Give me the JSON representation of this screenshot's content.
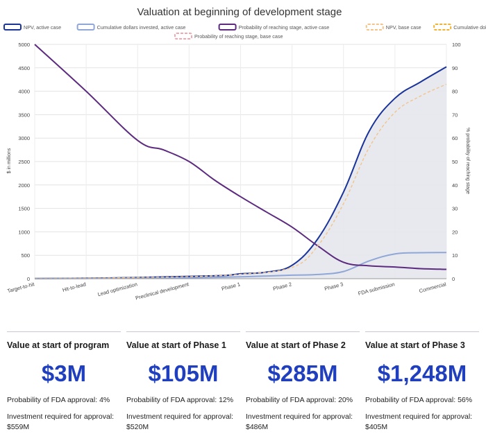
{
  "chart_data": {
    "type": "line",
    "title": "Valuation at beginning of development stage",
    "ylabel": "$ in millions",
    "y2label": "% probability of reaching stage",
    "categories": [
      "Target-to-hit",
      "Hit-to-lead",
      "Lead optimization",
      "Preclinical development",
      "Phase 1",
      "Phase 2",
      "Phase 3",
      "FDA submission",
      "Commercial"
    ],
    "ylim": [
      0,
      5000
    ],
    "y2lim": [
      0,
      100
    ],
    "yticks": [
      0,
      500,
      1000,
      1500,
      2000,
      2500,
      3000,
      3500,
      4000,
      4500,
      5000
    ],
    "y2ticks": [
      0,
      10,
      20,
      30,
      40,
      50,
      60,
      70,
      80,
      90,
      100
    ],
    "grid": true,
    "legend_position": "top",
    "series": [
      {
        "name": "NPV, active case",
        "axis": "left",
        "style": "solid",
        "color": "#1a3399",
        "fill": "#e4e7ec",
        "x": [
          0,
          1,
          2,
          3,
          3.7,
          4,
          4.5,
          5,
          5.5,
          6,
          6.5,
          7,
          7.5,
          8
        ],
        "values": [
          3,
          10,
          25,
          50,
          70,
          105,
          140,
          285,
          850,
          1850,
          3150,
          3850,
          4200,
          4520
        ]
      },
      {
        "name": "Cumulative dollars invested, active case",
        "axis": "left",
        "style": "solid",
        "color": "#8fa6d6",
        "x": [
          0,
          1,
          2,
          3,
          4,
          5,
          5.5,
          6,
          6.5,
          7,
          7.5,
          8
        ],
        "values": [
          2,
          5,
          10,
          20,
          40,
          75,
          90,
          154,
          380,
          530,
          555,
          559
        ]
      },
      {
        "name": "Probability of reaching stage, active case",
        "axis": "right",
        "style": "solid",
        "color": "#5c2a7e",
        "x": [
          0,
          1,
          2,
          2.5,
          3,
          3.5,
          4,
          4.5,
          5,
          5.5,
          6,
          6.5,
          7,
          7.5,
          8
        ],
        "values": [
          100,
          80,
          59,
          55,
          50,
          42,
          35,
          28.5,
          22,
          14,
          7,
          5.5,
          5,
          4.3,
          4
        ]
      },
      {
        "name": "NPV, base case",
        "axis": "left",
        "style": "dashed",
        "color": "#f2c48c",
        "x": [
          0,
          1,
          2,
          3,
          4,
          5,
          5.5,
          6,
          6.5,
          7,
          7.5,
          8
        ],
        "values": [
          3,
          10,
          25,
          45,
          95,
          240,
          700,
          1600,
          2800,
          3550,
          3900,
          4150
        ]
      },
      {
        "name": "Cumulative dollars invested, base case",
        "axis": "left",
        "style": "dashed",
        "color": "#f0b230",
        "x": [
          0,
          8
        ],
        "values": [
          null,
          null
        ]
      },
      {
        "name": "Probability of reaching stage, base case",
        "axis": "right",
        "style": "dashed",
        "color": "#f0a8b0",
        "x": [
          0,
          8
        ],
        "values": [
          null,
          null
        ]
      }
    ]
  },
  "cards": [
    {
      "title": "Value at start of program",
      "value": "$3M",
      "prob": "Probability of FDA approval: 4%",
      "invest": "Investment required for approval: $559M"
    },
    {
      "title": "Value at start of Phase 1",
      "value": "$105M",
      "prob": "Probability of FDA approval: 12%",
      "invest": "Investment required for approval: $520M"
    },
    {
      "title": "Value at start of Phase 2",
      "value": "$285M",
      "prob": "Probability of FDA approval: 20%",
      "invest": "Investment required for approval: $486M"
    },
    {
      "title": "Value at start of Phase 3",
      "value": "$1,248M",
      "prob": "Probability of FDA approval: 56%",
      "invest": "Investment required for approval: $405M"
    }
  ]
}
